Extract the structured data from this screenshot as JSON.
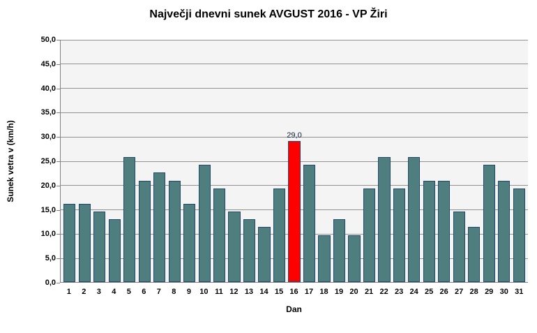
{
  "title": "Največji dnevni sunek AVGUST 2016 - VP Žiri",
  "chart_data": {
    "type": "bar",
    "title": "Največji dnevni sunek AVGUST 2016 - VP Žiri",
    "xlabel": "Dan",
    "ylabel": "Sunek vetra v (km/h)",
    "categories": [
      1,
      2,
      3,
      4,
      5,
      6,
      7,
      8,
      9,
      10,
      11,
      12,
      13,
      14,
      15,
      16,
      17,
      18,
      19,
      20,
      21,
      22,
      23,
      24,
      25,
      26,
      27,
      28,
      29,
      30,
      31
    ],
    "values": [
      16.1,
      16.1,
      14.5,
      12.9,
      25.7,
      20.9,
      22.5,
      20.9,
      16.1,
      24.1,
      19.3,
      14.5,
      12.9,
      11.3,
      19.3,
      29.0,
      24.1,
      9.7,
      12.9,
      9.7,
      19.3,
      25.7,
      19.3,
      25.7,
      20.9,
      20.9,
      14.5,
      11.3,
      24.1,
      20.9,
      19.3
    ],
    "ylim": [
      0,
      50
    ],
    "ytick_step": 5,
    "ytick_labels": [
      "0,0",
      "5,0",
      "10,0",
      "15,0",
      "20,0",
      "25,0",
      "30,0",
      "35,0",
      "40,0",
      "45,0",
      "50,0"
    ],
    "grid": true,
    "legend": "none",
    "highlight": {
      "day": 16,
      "value_label": "29,0",
      "color": "#ff0000"
    },
    "colors": {
      "bar_fill": "#4e7e7e",
      "bar_border": "#24486b",
      "highlight_fill": "#ff0000",
      "plot_background": "#f4f4f4",
      "gridline": "#919191",
      "axis_line": "#808080"
    }
  }
}
